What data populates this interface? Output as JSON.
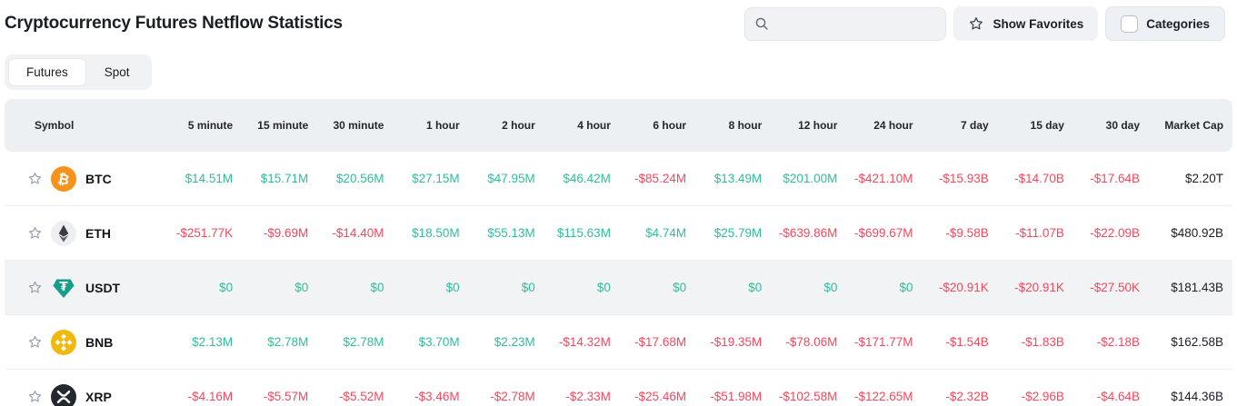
{
  "header": {
    "title": "Cryptocurrency Futures Netflow Statistics",
    "search": {
      "placeholder": "",
      "value": ""
    },
    "show_favorites_label": "Show Favorites",
    "categories_label": "Categories"
  },
  "tabs": [
    {
      "label": "Futures",
      "active": true
    },
    {
      "label": "Spot",
      "active": false
    }
  ],
  "colors": {
    "positive": "#2EBD9B",
    "negative": "#F6475D",
    "btc": "#F7931A",
    "eth_circle": "#edeff3",
    "usdt": "#159E8C",
    "bnb": "#F0B90B",
    "xrp": "#23292F",
    "header_bg": "#edf0f3",
    "highlight_row_bg": "#f1f3f5"
  },
  "table": {
    "columns": [
      "Symbol",
      "5 minute",
      "15 minute",
      "30 minute",
      "1 hour",
      "2 hour",
      "4 hour",
      "6 hour",
      "8 hour",
      "12 hour",
      "24 hour",
      "7 day",
      "15 day",
      "30 day",
      "Market Cap"
    ],
    "rows": [
      {
        "symbol": "BTC",
        "icon": "btc",
        "favorited": false,
        "highlight": false,
        "values": [
          "$14.51M",
          "$15.71M",
          "$20.56M",
          "$27.15M",
          "$47.95M",
          "$46.42M",
          "-$85.24M",
          "$13.49M",
          "$201.00M",
          "-$421.10M",
          "-$15.93B",
          "-$14.70B",
          "-$17.64B"
        ],
        "market_cap": "$2.20T"
      },
      {
        "symbol": "ETH",
        "icon": "eth",
        "favorited": false,
        "highlight": false,
        "values": [
          "-$251.77K",
          "-$9.69M",
          "-$14.40M",
          "$18.50M",
          "$55.13M",
          "$115.63M",
          "$4.74M",
          "$25.79M",
          "-$639.86M",
          "-$699.67M",
          "-$9.58B",
          "-$11.07B",
          "-$22.09B"
        ],
        "market_cap": "$480.92B"
      },
      {
        "symbol": "USDT",
        "icon": "usdt",
        "favorited": false,
        "highlight": true,
        "values": [
          "$0",
          "$0",
          "$0",
          "$0",
          "$0",
          "$0",
          "$0",
          "$0",
          "$0",
          "$0",
          "-$20.91K",
          "-$20.91K",
          "-$27.50K"
        ],
        "market_cap": "$181.43B"
      },
      {
        "symbol": "BNB",
        "icon": "bnb",
        "favorited": false,
        "highlight": false,
        "values": [
          "$2.13M",
          "$2.78M",
          "$2.78M",
          "$3.70M",
          "$2.23M",
          "-$14.32M",
          "-$17.68M",
          "-$19.35M",
          "-$78.06M",
          "-$171.77M",
          "-$1.54B",
          "-$1.83B",
          "-$2.18B"
        ],
        "market_cap": "$162.58B"
      },
      {
        "symbol": "XRP",
        "icon": "xrp",
        "favorited": false,
        "highlight": false,
        "values": [
          "-$4.16M",
          "-$5.57M",
          "-$5.52M",
          "-$3.46M",
          "-$2.78M",
          "-$2.33M",
          "-$25.46M",
          "-$51.98M",
          "-$102.58M",
          "-$122.65M",
          "-$2.32B",
          "-$2.96B",
          "-$4.64B"
        ],
        "market_cap": "$144.36B"
      }
    ]
  }
}
